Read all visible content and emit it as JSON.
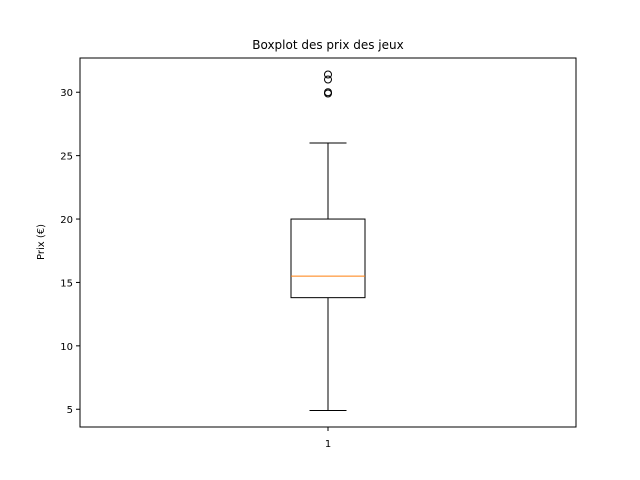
{
  "chart_data": {
    "type": "boxplot",
    "title": "Boxplot des prix des jeux",
    "xlabel": "",
    "ylabel": "Prix (€)",
    "categories": [
      "1"
    ],
    "ylim": [
      3.6,
      32.7
    ],
    "yticks": [
      5,
      10,
      15,
      20,
      25,
      30
    ],
    "grid": false,
    "boxes": [
      {
        "label": "1",
        "whisker_low": 4.9,
        "q1": 13.8,
        "median": 15.5,
        "q3": 20.0,
        "whisker_high": 26.0,
        "outliers": [
          29.9,
          30.0,
          31.0,
          31.4
        ]
      }
    ],
    "colors": {
      "box": "#000000",
      "median": "#ff7f0e",
      "background": "#ffffff"
    }
  }
}
